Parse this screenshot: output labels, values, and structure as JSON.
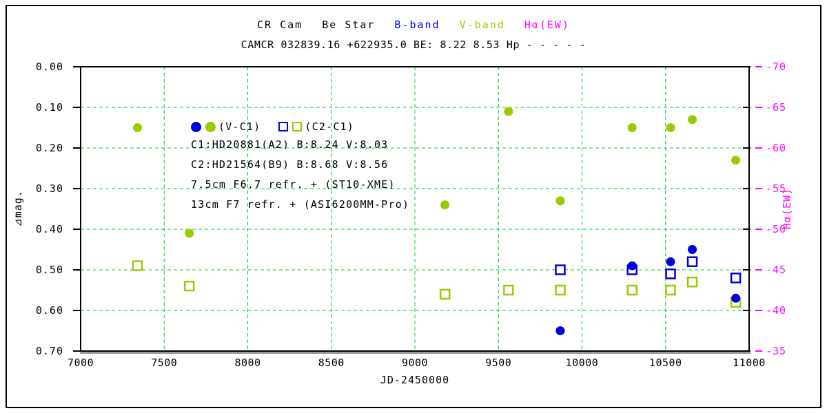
{
  "title": {
    "star": "CR Cam",
    "star_type": "Be Star",
    "b_band": "B-band",
    "v_band": "V-band",
    "halpha": "Hα(EW)"
  },
  "subtitle": "CAMCR 032839.16 +622935.0 BE: 8.22 8.53 Hp - - - - -",
  "colors": {
    "b_band": "#0000DD",
    "v_band": "#99CC00",
    "halpha": "#FF00FF",
    "grid_green": "#00CC33",
    "axis_black": "#000000",
    "frame_shadow": "#999999"
  },
  "legend": {
    "vc1_label": "(V-C1)",
    "c2c1_label": "(C2-C1)",
    "lines": [
      "C1:HD20881(A2) B:8.24 V:8.03",
      "C2:HD21564(B9) B:8.68 V:8.56",
      "7.5cm F6.7 refr. + (ST10-XME)",
      "13cm F7 refr. + (ASI6200MM-Pro)"
    ]
  },
  "chart_data": {
    "type": "scatter",
    "xlabel": "JD-2450000",
    "ylabel_left": "⊿mag.",
    "ylabel_right": "Hα(EW)",
    "xlim": [
      7000,
      11000
    ],
    "xticks": [
      "7000",
      "7500",
      "8000",
      "8500",
      "9000",
      "9500",
      "10000",
      "10500",
      "11000"
    ],
    "ylim_left": [
      0.0,
      0.7
    ],
    "y_left_inverted": true,
    "yticks_left": [
      "0.00",
      "0.10",
      "0.20",
      "0.30",
      "0.40",
      "0.50",
      "0.60",
      "0.70"
    ],
    "ylim_right": [
      -70,
      -35
    ],
    "yticks_right": [
      "-70",
      "-65",
      "-60",
      "-55",
      "-50",
      "-45",
      "-40",
      "-35"
    ],
    "grid": true,
    "legend_position": "inside-top-left",
    "series": [
      {
        "name": "B-band (V-C1)",
        "marker": "filled-circle",
        "color_key": "b_band",
        "points": [
          [
            9870,
            0.65
          ],
          [
            10300,
            0.49
          ],
          [
            10530,
            0.48
          ],
          [
            10660,
            0.45
          ],
          [
            10920,
            0.57
          ]
        ]
      },
      {
        "name": "V-band (V-C1)",
        "marker": "filled-circle",
        "color_key": "v_band",
        "points": [
          [
            7340,
            0.15
          ],
          [
            7650,
            0.41
          ],
          [
            9180,
            0.34
          ],
          [
            9560,
            0.11
          ],
          [
            9870,
            0.33
          ],
          [
            10300,
            0.15
          ],
          [
            10530,
            0.15
          ],
          [
            10660,
            0.13
          ],
          [
            10920,
            0.23
          ]
        ]
      },
      {
        "name": "B-band (C2-C1)",
        "marker": "open-square",
        "color_key": "b_band",
        "points": [
          [
            9870,
            0.5
          ],
          [
            10300,
            0.5
          ],
          [
            10530,
            0.51
          ],
          [
            10660,
            0.48
          ],
          [
            10920,
            0.52
          ]
        ]
      },
      {
        "name": "V-band (C2-C1)",
        "marker": "open-square",
        "color_key": "v_band",
        "points": [
          [
            7340,
            0.49
          ],
          [
            7650,
            0.54
          ],
          [
            9180,
            0.56
          ],
          [
            9560,
            0.55
          ],
          [
            9870,
            0.55
          ],
          [
            10300,
            0.55
          ],
          [
            10530,
            0.55
          ],
          [
            10660,
            0.53
          ],
          [
            10920,
            0.58
          ]
        ]
      }
    ],
    "halpha_points": []
  }
}
